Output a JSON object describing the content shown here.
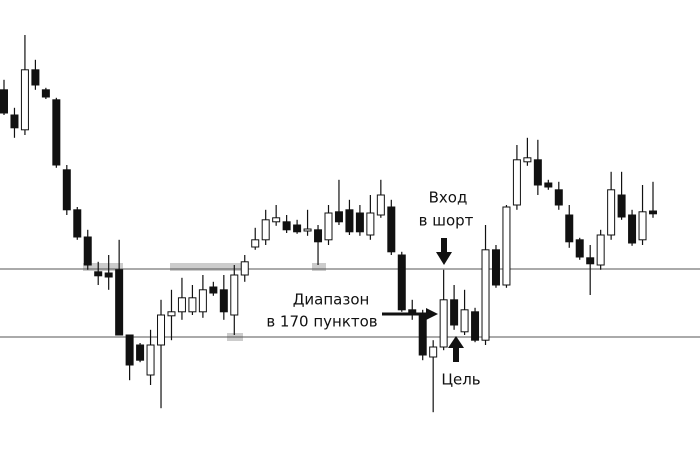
{
  "chart_data": {
    "type": "candlestick",
    "ylim": [
      -330,
      842.5
    ],
    "levels": [
      170,
      0
    ],
    "open": [
      618,
      555,
      518,
      668,
      618,
      593,
      418,
      318,
      250,
      163,
      160,
      168,
      5,
      -20,
      -95,
      -20,
      53,
      63,
      63,
      63,
      125,
      118,
      55,
      155,
      225,
      243,
      288,
      288,
      280,
      265,
      268,
      243,
      313,
      318,
      310,
      255,
      305,
      325,
      205,
      68,
      55,
      -50,
      -25,
      93,
      13,
      63,
      -8,
      218,
      130,
      330,
      438,
      443,
      385,
      368,
      305,
      243,
      198,
      180,
      255,
      355,
      305,
      243,
      315
    ],
    "high": [
      643,
      573,
      755,
      693,
      623,
      598,
      430,
      325,
      268,
      188,
      205,
      243,
      5,
      -15,
      18,
      93,
      118,
      148,
      130,
      155,
      138,
      155,
      180,
      205,
      273,
      318,
      330,
      305,
      293,
      318,
      280,
      330,
      393,
      343,
      330,
      355,
      393,
      343,
      213,
      93,
      68,
      -8,
      168,
      130,
      118,
      73,
      280,
      230,
      330,
      480,
      498,
      493,
      393,
      388,
      330,
      248,
      230,
      268,
      413,
      413,
      318,
      380,
      388
    ],
    "low": [
      555,
      498,
      505,
      618,
      595,
      423,
      305,
      243,
      168,
      130,
      118,
      5,
      -108,
      -63,
      -120,
      -178,
      -8,
      43,
      55,
      48,
      103,
      43,
      5,
      138,
      218,
      230,
      278,
      260,
      258,
      253,
      180,
      230,
      280,
      255,
      253,
      243,
      298,
      205,
      63,
      43,
      -58,
      -188,
      -33,
      18,
      5,
      -13,
      -20,
      123,
      123,
      318,
      428,
      355,
      368,
      318,
      223,
      193,
      105,
      168,
      243,
      293,
      228,
      230,
      298
    ],
    "close": [
      560,
      523,
      668,
      630,
      600,
      430,
      318,
      250,
      180,
      153,
      150,
      5,
      -70,
      -58,
      -20,
      55,
      63,
      98,
      98,
      118,
      110,
      63,
      155,
      188,
      243,
      293,
      298,
      268,
      263,
      270,
      238,
      310,
      288,
      263,
      263,
      310,
      355,
      213,
      68,
      55,
      -45,
      -25,
      93,
      30,
      68,
      -8,
      218,
      130,
      325,
      443,
      448,
      380,
      375,
      330,
      238,
      200,
      183,
      255,
      368,
      300,
      235,
      313,
      308
    ],
    "annotations": {
      "entry": [
        "Вход",
        "в шорт"
      ],
      "range": [
        "Диапазон",
        "в 170 пунктов"
      ],
      "target": "Цель"
    }
  }
}
